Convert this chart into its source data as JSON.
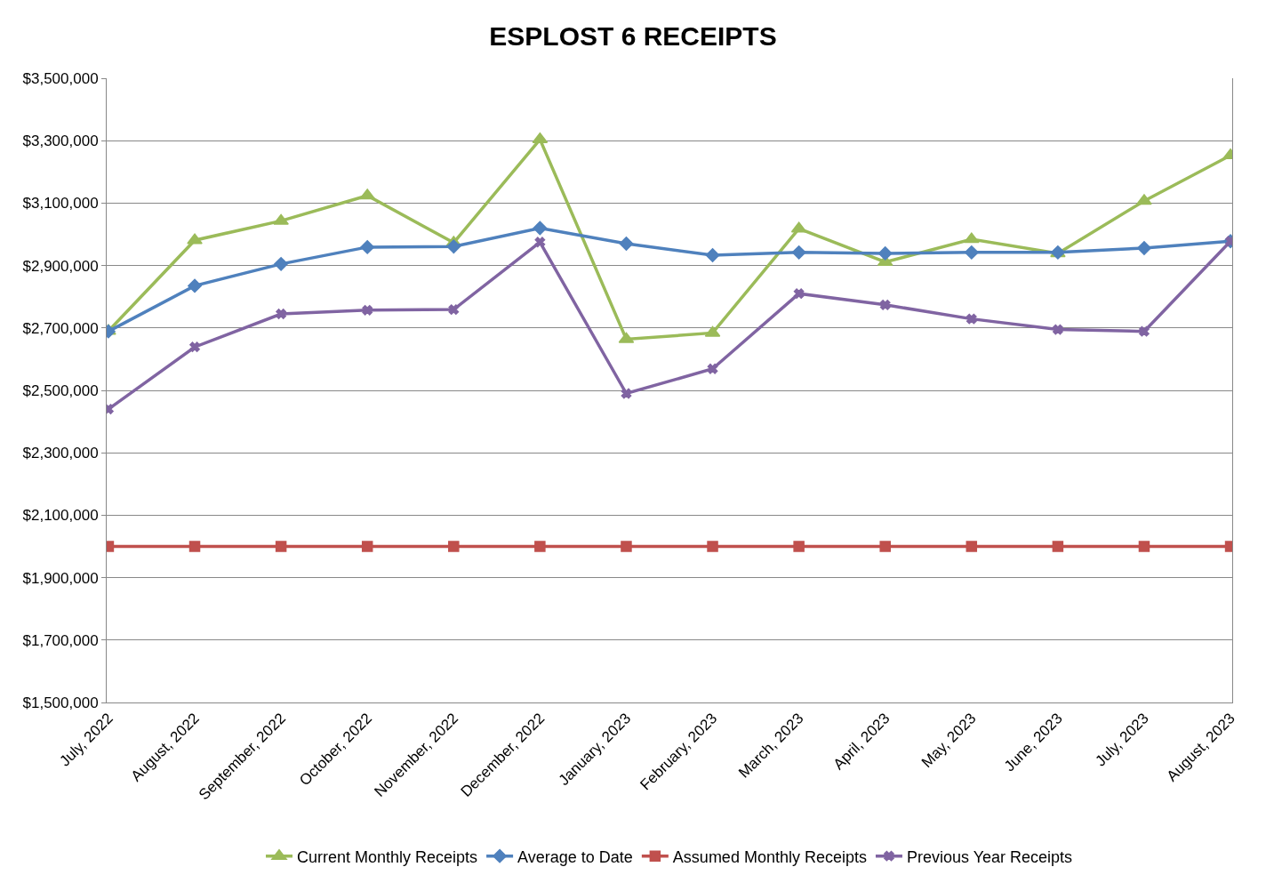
{
  "chart_data": {
    "type": "line",
    "title": "ESPLOST 6 RECEIPTS",
    "categories": [
      "July, 2022",
      "August, 2022",
      "September, 2022",
      "October, 2022",
      "November, 2022",
      "December, 2022",
      "January, 2023",
      "February, 2023",
      "March, 2023",
      "April, 2023",
      "May, 2023",
      "June, 2023",
      "July, 2023",
      "August, 2023"
    ],
    "series": [
      {
        "name": "Current Monthly Receipts",
        "color": "#9bbb59",
        "marker": "triangle",
        "values": [
          2690000,
          2981000,
          3043000,
          3124000,
          2973000,
          3304000,
          2664000,
          2684000,
          3018000,
          2911000,
          2984000,
          2939000,
          3107000,
          3253000
        ]
      },
      {
        "name": "Average to Date",
        "color": "#4f81bd",
        "marker": "diamond",
        "values": [
          2689000,
          2835000,
          2905000,
          2959000,
          2961000,
          3020000,
          2970000,
          2933000,
          2942000,
          2939000,
          2942000,
          2942000,
          2956000,
          2978000
        ]
      },
      {
        "name": "Assumed Monthly Receipts",
        "color": "#c0504d",
        "marker": "square",
        "values": [
          2000000,
          2000000,
          2000000,
          2000000,
          2000000,
          2000000,
          2000000,
          2000000,
          2000000,
          2000000,
          2000000,
          2000000,
          2000000,
          2000000
        ]
      },
      {
        "name": "Previous Year Receipts",
        "color": "#8064a2",
        "marker": "cross",
        "values": [
          2440000,
          2639000,
          2745000,
          2757000,
          2759000,
          2975000,
          2490000,
          2569000,
          2810000,
          2774000,
          2729000,
          2695000,
          2689000,
          2978000
        ]
      }
    ],
    "ylim": [
      1500000,
      3500000
    ],
    "yticks": [
      {
        "value": 1500000,
        "label": "$1,500,000"
      },
      {
        "value": 1700000,
        "label": "$1,700,000"
      },
      {
        "value": 1900000,
        "label": "$1,900,000"
      },
      {
        "value": 2100000,
        "label": "$2,100,000"
      },
      {
        "value": 2300000,
        "label": "$2,300,000"
      },
      {
        "value": 2500000,
        "label": "$2,500,000"
      },
      {
        "value": 2700000,
        "label": "$2,700,000"
      },
      {
        "value": 2900000,
        "label": "$2,900,000"
      },
      {
        "value": 3100000,
        "label": "$3,100,000"
      },
      {
        "value": 3300000,
        "label": "$3,300,000"
      },
      {
        "value": 3500000,
        "label": "$3,500,000"
      }
    ],
    "grid": "y",
    "legend": "bottom",
    "line_style": "solid"
  }
}
